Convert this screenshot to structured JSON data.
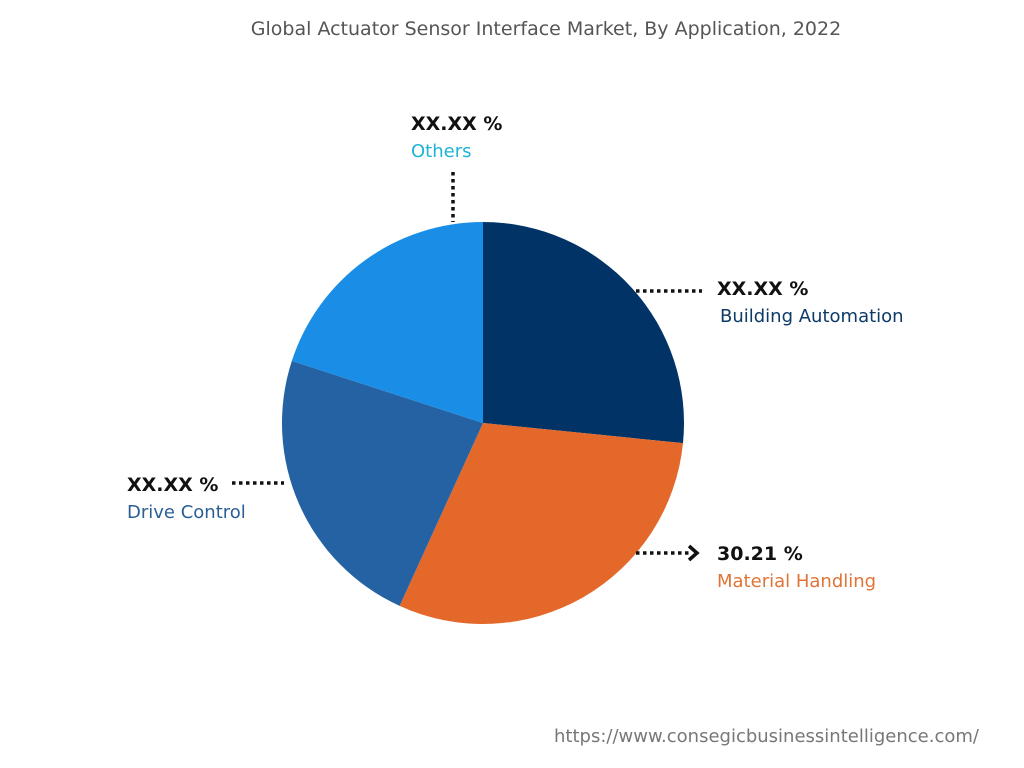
{
  "chart_data": {
    "type": "pie",
    "title": "Global Actuator Sensor Interface Market, By Application, 2022",
    "slices": [
      {
        "name": "Building Automation",
        "label": "XX.XX %",
        "value": 26.6,
        "color": "#023366",
        "label_color": "#0d3a66"
      },
      {
        "name": "Material Handling",
        "label": "30.21 %",
        "value": 30.21,
        "color": "#E4682A",
        "label_color": "#e07436"
      },
      {
        "name": "Drive Control",
        "label": "XX.XX %",
        "value": 23.19,
        "color": "#2462A3",
        "label_color": "#2a5f95"
      },
      {
        "name": "Others",
        "label": "XX.XX %",
        "value": 20.0,
        "color": "#1A8EE6",
        "label_color": "#1fb3d6"
      }
    ],
    "start_angle": "top",
    "direction": "clockwise",
    "legend": "none"
  },
  "footer": {
    "url": "https://www.consegicbusinessintelligence.com/"
  }
}
